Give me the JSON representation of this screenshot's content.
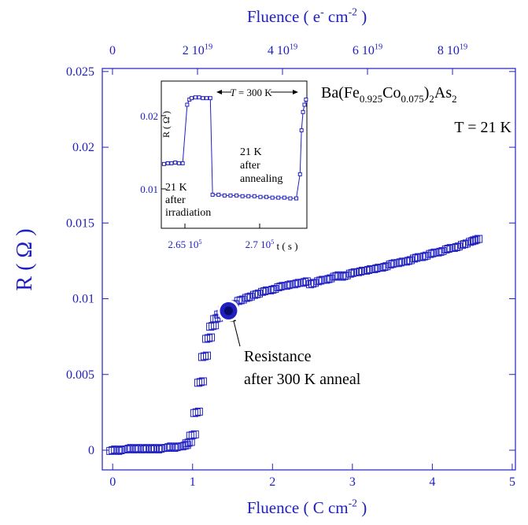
{
  "chart_data": [
    {
      "type": "scatter",
      "xlabel": [
        {
          "t": "Fluence ( C cm"
        },
        {
          "sup": "-2"
        },
        {
          "t": " )"
        }
      ],
      "ylabel": "R ( Ω )",
      "x2label": [
        {
          "t": "Fluence ( e"
        },
        {
          "sup": "-"
        },
        {
          "t": " cm"
        },
        {
          "sup": "-2"
        },
        {
          "t": " )"
        }
      ],
      "formula": [
        {
          "t": "Ba(Fe"
        },
        {
          "sub": "0.925"
        },
        {
          "t": "Co"
        },
        {
          "sub": "0.075"
        },
        {
          "t": ")"
        },
        {
          "sub": "2"
        },
        {
          "t": "As"
        },
        {
          "sub": "2"
        }
      ],
      "temperature": "T = 21 K",
      "annotation": [
        "Resistance",
        "after 300 K anneal"
      ],
      "highlight": {
        "x": 1.45,
        "y": 0.0092
      },
      "color": "#2020c0",
      "xlim": [
        -0.13,
        5.04
      ],
      "xticks": [
        0,
        1,
        2,
        3,
        4,
        5
      ],
      "ylim": [
        -0.0013,
        0.0252
      ],
      "yticks": [
        0,
        0.005,
        0.01,
        0.015,
        0.02,
        0.025
      ],
      "x2lim": [
        -2.4e+18,
        9.48e+19
      ],
      "x2ticks": [
        {
          "value": 0,
          "label": "0"
        },
        {
          "value": 2e+19,
          "label": "2 10",
          "label_sup": "19"
        },
        {
          "value": 4e+19,
          "label": "4 10",
          "label_sup": "19"
        },
        {
          "value": 6e+19,
          "label": "6 10",
          "label_sup": "19"
        },
        {
          "value": 8e+19,
          "label": "8 10",
          "label_sup": "19"
        }
      ],
      "x": [
        0,
        0.1,
        0.2,
        0.3,
        0.4,
        0.5,
        0.6,
        0.7,
        0.8,
        0.9,
        0.95,
        1.0,
        1.05,
        1.1,
        1.15,
        1.2,
        1.25,
        1.3,
        1.35,
        1.4,
        1.5,
        1.6,
        1.7,
        1.8,
        1.9,
        2.0,
        2.1,
        2.2,
        2.3,
        2.4,
        2.5,
        2.6,
        2.7,
        2.8,
        2.9,
        3.0,
        3.1,
        3.2,
        3.3,
        3.4,
        3.5,
        3.6,
        3.7,
        3.8,
        3.9,
        4.0,
        4.1,
        4.2,
        4.3,
        4.4,
        4.5,
        4.55
      ],
      "values": [
        0,
        0,
        0.0001,
        0.0001,
        0.0001,
        0.0001,
        0.0001,
        0.0002,
        0.0002,
        0.0003,
        0.0005,
        0.001,
        0.0025,
        0.0045,
        0.0062,
        0.0074,
        0.0082,
        0.0087,
        0.009,
        0.0093,
        0.0096,
        0.0099,
        0.0101,
        0.0103,
        0.0105,
        0.0106,
        0.0108,
        0.0109,
        0.011,
        0.0111,
        0.011,
        0.0112,
        0.0113,
        0.0115,
        0.0115,
        0.0117,
        0.0118,
        0.0119,
        0.012,
        0.0121,
        0.0123,
        0.0124,
        0.0125,
        0.0127,
        0.0128,
        0.013,
        0.0131,
        0.0133,
        0.0134,
        0.0136,
        0.0138,
        0.0139
      ]
    },
    {
      "type": "line",
      "xlabel": "t ( s )",
      "ylabel": "R ( Ω )",
      "span": [
        {
          "it": "T"
        },
        {
          "t": " = 300 K"
        }
      ],
      "note_irradiation": [
        "21 K",
        "after",
        "irradiation"
      ],
      "note_annealing": [
        "21 K",
        "after",
        "annealing"
      ],
      "color": "#2020c0",
      "xlim": [
        263420,
        273160
      ],
      "xticks": [
        {
          "value": 265000,
          "label": "2.65 10",
          "label_sup": "5"
        },
        {
          "value": 270000,
          "label": "2.7 10",
          "label_sup": "5"
        }
      ],
      "ylim": [
        0.00462,
        0.02473
      ],
      "yticks": [
        0.01,
        0.02
      ],
      "x": [
        263600,
        263850,
        264100,
        264350,
        264600,
        264850,
        265150,
        265300,
        265450,
        265700,
        265950,
        266200,
        266450,
        266700,
        266850,
        267250,
        267650,
        268050,
        268450,
        268850,
        269250,
        269650,
        270050,
        270450,
        270850,
        271250,
        271650,
        272050,
        272450,
        272700,
        272800,
        272900,
        273000,
        273100
      ],
      "values": [
        0.0134,
        0.0135,
        0.0135,
        0.0136,
        0.0135,
        0.0135,
        0.0215,
        0.0222,
        0.0224,
        0.0225,
        0.0225,
        0.0224,
        0.0224,
        0.0224,
        0.0092,
        0.0092,
        0.0091,
        0.0091,
        0.0091,
        0.009,
        0.009,
        0.009,
        0.0089,
        0.0089,
        0.0088,
        0.0088,
        0.0088,
        0.0087,
        0.0087,
        0.012,
        0.018,
        0.0205,
        0.0215,
        0.0222
      ]
    }
  ]
}
